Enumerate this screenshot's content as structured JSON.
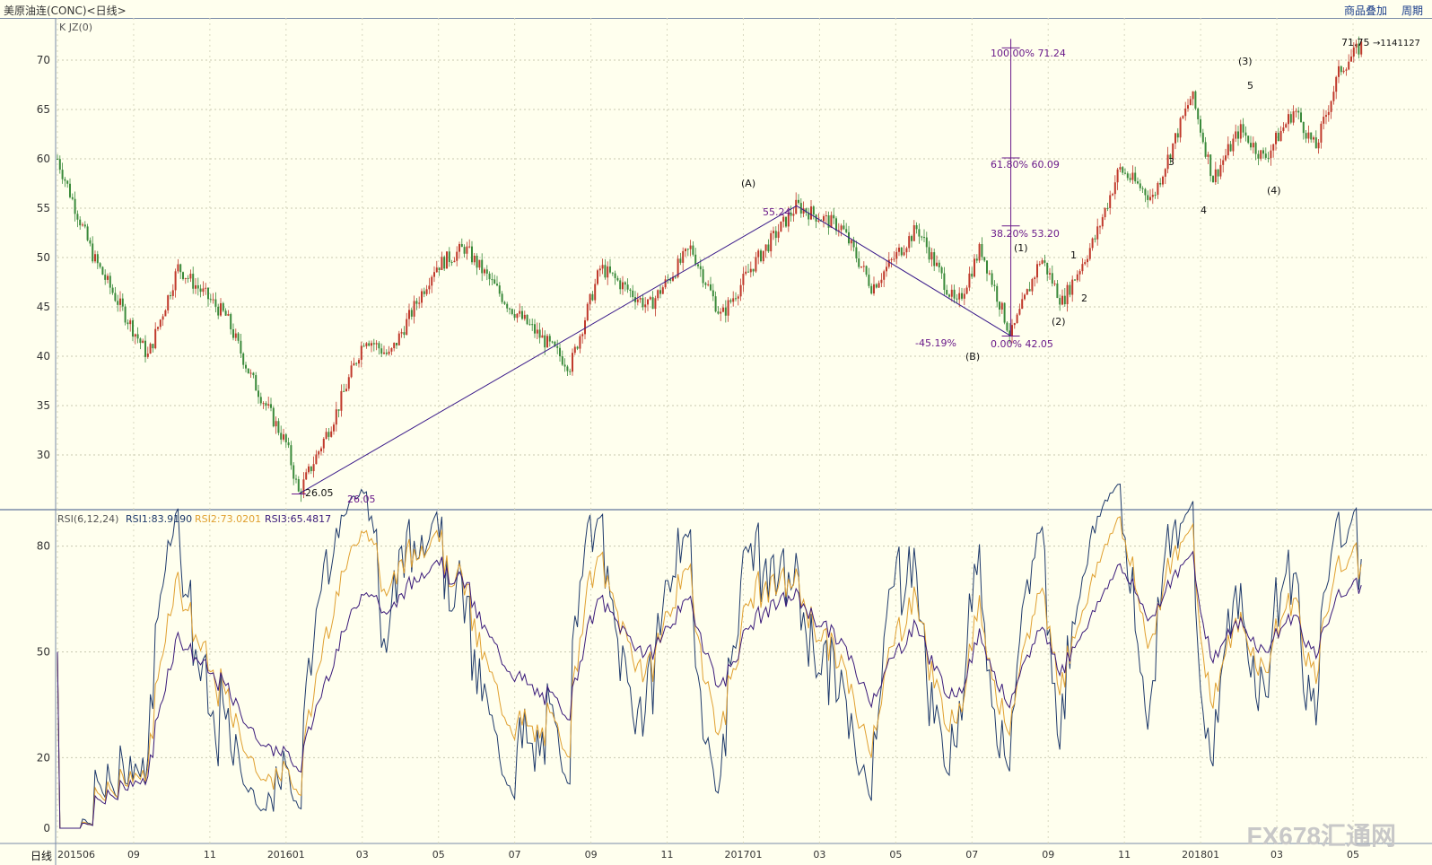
{
  "header": {
    "title": "美原油连(CONC)<日线>",
    "menu_overlay": "商品叠加",
    "menu_period": "周期"
  },
  "main": {
    "indicator_label": "K JZ(0)"
  },
  "price_axis": {
    "ticks": [
      "70",
      "65",
      "60",
      "55",
      "50",
      "45",
      "40",
      "35",
      "30"
    ]
  },
  "rsi_axis": {
    "ticks": [
      "80",
      "50",
      "20",
      "0"
    ]
  },
  "x_axis": {
    "period_label": "日线",
    "ticks": [
      "201506",
      "09",
      "11",
      "201601",
      "03",
      "05",
      "07",
      "09",
      "11",
      "201701",
      "03",
      "05",
      "07",
      "09",
      "11",
      "201801",
      "03",
      "05"
    ]
  },
  "rsi": {
    "title": "RSI(6,12,24)",
    "rsi1": "RSI1:83.9190",
    "rsi2": "RSI2:73.0201",
    "rsi3": "RSI3:65.4817"
  },
  "annotations": {
    "low_value": "26.05",
    "low_value2": "26.05",
    "peak_A_value": "55.24",
    "peak_A_label": "(A)",
    "trough_B_label": "(B)",
    "pct_drop": "-45.19%",
    "fib_100": "100.00%   71.24",
    "fib_618": "61.80%   60.09",
    "fib_382": "38.20%   53.20",
    "fib_0": "0.00%   42.05",
    "w1": "(1)",
    "w2": "(2)",
    "w3": "(3)",
    "w4": "(4)",
    "s1": "1",
    "s2": "2",
    "s3": "3",
    "s4": "4",
    "s5": "5",
    "last_price": "71.75",
    "last_tag": "→1141127"
  },
  "watermark": "FX678汇通网",
  "colors": {
    "bg": "#FFFFEE",
    "up": "#C0392B",
    "down": "#3A8A3A",
    "rsi1": "#1F3A6B",
    "rsi2": "#E0A030",
    "rsi3": "#3A1A7A",
    "fib": "#6A1A8A"
  },
  "chart_data": {
    "type": "candlestick",
    "x_range": [
      "2015-06",
      "2018-05"
    ],
    "ylim": [
      26,
      73
    ],
    "key_points": [
      {
        "label": "start",
        "date": "2015-06",
        "value": 60
      },
      {
        "label": "low",
        "date": "2016-02",
        "value": 26.05
      },
      {
        "label": "(A)",
        "date": "2017-01",
        "value": 55.24
      },
      {
        "label": "(B)",
        "date": "2017-06",
        "value": 42.05
      },
      {
        "label": "(1)",
        "date": "2017-08",
        "value": 50.5
      },
      {
        "label": "(2)",
        "date": "2017-09",
        "value": 45.5
      },
      {
        "label": "3",
        "date": "2017-11",
        "value": 59
      },
      {
        "label": "4",
        "date": "2017-11",
        "value": 56
      },
      {
        "label": "(3)",
        "date": "2018-01",
        "value": 66.5
      },
      {
        "label": "(4)",
        "date": "2018-02",
        "value": 58
      },
      {
        "label": "last",
        "date": "2018-05",
        "value": 71.75
      }
    ],
    "fibonacci": [
      {
        "level": "100.00%",
        "value": 71.24
      },
      {
        "level": "61.80%",
        "value": 60.09
      },
      {
        "level": "38.20%",
        "value": 53.2
      },
      {
        "level": "0.00%",
        "value": 42.05
      }
    ],
    "rsi_series": [
      {
        "name": "RSI1",
        "last": 83.919
      },
      {
        "name": "RSI2",
        "last": 73.0201
      },
      {
        "name": "RSI3",
        "last": 65.4817
      }
    ],
    "rsi_ylim": [
      0,
      100
    ]
  }
}
